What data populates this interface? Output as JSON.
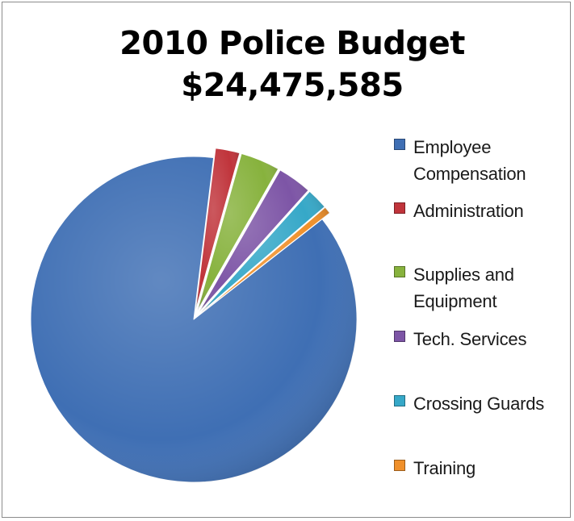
{
  "chart_data": {
    "type": "pie",
    "title": "2010 Police Budget",
    "subtitle": "$24,475,585",
    "legend_position": "right",
    "exploded": true,
    "slices": [
      {
        "label": "Employee Compensation",
        "value": 87.5,
        "color": "#3f6fb4"
      },
      {
        "label": "Administration",
        "value": 2.4,
        "color": "#c0343b"
      },
      {
        "label": "Supplies and Equipment",
        "value": 3.9,
        "color": "#87b23d"
      },
      {
        "label": "Tech. Services",
        "value": 3.4,
        "color": "#7d55a6"
      },
      {
        "label": "Crossing Guards",
        "value": 2.1,
        "color": "#36a8c8"
      },
      {
        "label": "Training",
        "value": 0.7,
        "color": "#f0902a"
      }
    ],
    "legend": [
      {
        "label": "Employee\nCompensation",
        "color": "#3f6fb4"
      },
      {
        "label": "Administration",
        "color": "#c0343b"
      },
      {
        "label": "Supplies and\nEquipment",
        "color": "#87b23d"
      },
      {
        "label": "Tech. Services",
        "color": "#7d55a6"
      },
      {
        "label": "Crossing Guards",
        "color": "#36a8c8"
      },
      {
        "label": "Training",
        "color": "#f0902a"
      }
    ]
  }
}
